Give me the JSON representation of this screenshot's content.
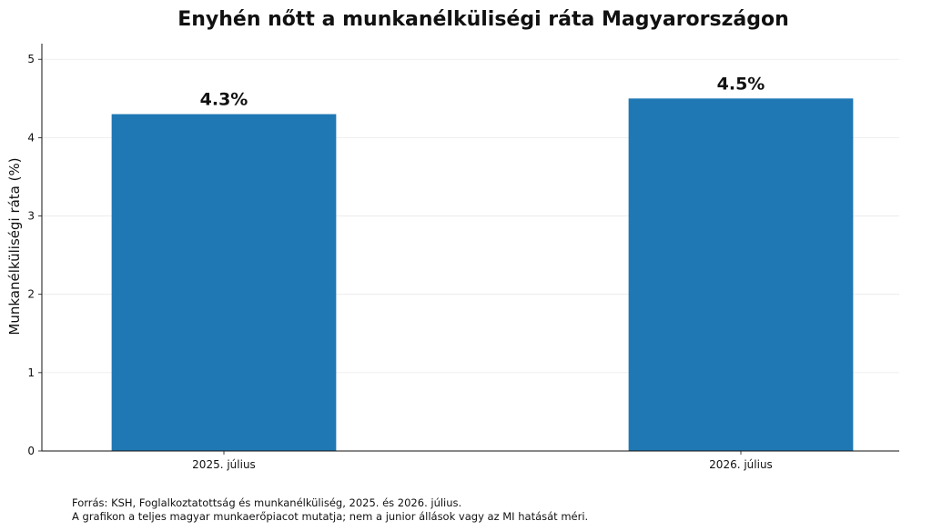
{
  "chart_data": {
    "type": "bar",
    "title": "Enyhén nőtt a munkanélküliségi ráta Magyarországon",
    "xlabel": "",
    "ylabel": "Munkanélküliségi ráta (%)",
    "categories": [
      "2025. július",
      "2026. július"
    ],
    "values": [
      4.3,
      4.5
    ],
    "data_labels": [
      "4.3%",
      "4.5%"
    ],
    "ylim": [
      0,
      5.2
    ],
    "yticks": [
      0,
      1,
      2,
      3,
      4,
      5
    ],
    "grid": "horizontal",
    "bar_color": "#1f77b4"
  },
  "footnote": {
    "line1": "Forrás: KSH, Foglalkoztatottság és munkanélküliség, 2025. és 2026. július.",
    "line2": "A grafikon a teljes magyar munkaerőpiacot mutatja; nem a junior állások vagy az MI hatását méri."
  }
}
